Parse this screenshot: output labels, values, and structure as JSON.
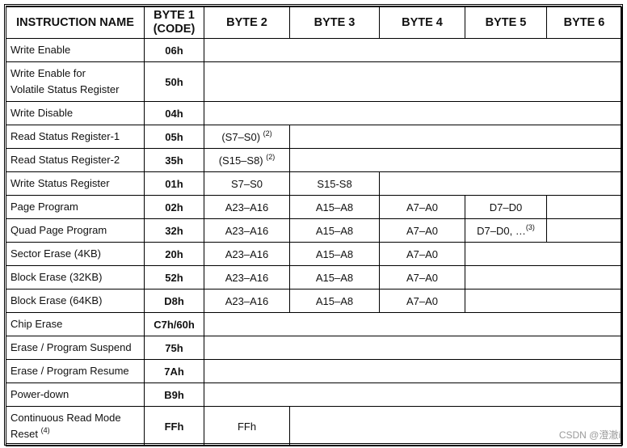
{
  "headers": [
    "INSTRUCTION NAME",
    "BYTE 1\n(CODE)",
    "BYTE 2",
    "BYTE 3",
    "BYTE 4",
    "BYTE 5",
    "BYTE 6"
  ],
  "rows": [
    {
      "name": "Write Enable",
      "code": "06h",
      "bytes": []
    },
    {
      "name": "Write Enable for\nVolatile Status Register",
      "code": "50h",
      "bytes": [],
      "tall": true
    },
    {
      "name": "Write Disable",
      "code": "04h",
      "bytes": []
    },
    {
      "name": "Read Status Register-1",
      "code": "05h",
      "bytes": [
        {
          "text": "(S7–S0) ",
          "sup": "(2)"
        }
      ]
    },
    {
      "name": "Read Status Register-2",
      "code": "35h",
      "bytes": [
        {
          "text": "(S15–S8) ",
          "sup": "(2)"
        }
      ]
    },
    {
      "name": "Write Status Register",
      "code": "01h",
      "bytes": [
        {
          "text": "S7–S0"
        },
        {
          "text": "S15-S8"
        }
      ]
    },
    {
      "name": "Page Program",
      "code": "02h",
      "bytes": [
        {
          "text": "A23–A16"
        },
        {
          "text": "A15–A8"
        },
        {
          "text": "A7–A0"
        },
        {
          "text": "D7–D0"
        },
        {
          "text": ""
        }
      ]
    },
    {
      "name": "Quad Page Program",
      "code": "32h",
      "bytes": [
        {
          "text": "A23–A16"
        },
        {
          "text": "A15–A8"
        },
        {
          "text": "A7–A0"
        },
        {
          "text": "D7–D0, …",
          "sup": "(3)"
        },
        {
          "text": ""
        }
      ]
    },
    {
      "name": "Sector Erase (4KB)",
      "code": "20h",
      "bytes": [
        {
          "text": "A23–A16"
        },
        {
          "text": "A15–A8"
        },
        {
          "text": "A7–A0"
        }
      ]
    },
    {
      "name": "Block Erase (32KB)",
      "code": "52h",
      "bytes": [
        {
          "text": "A23–A16"
        },
        {
          "text": "A15–A8"
        },
        {
          "text": "A7–A0"
        }
      ]
    },
    {
      "name": "Block Erase (64KB)",
      "code": "D8h",
      "bytes": [
        {
          "text": "A23–A16"
        },
        {
          "text": "A15–A8"
        },
        {
          "text": "A7–A0"
        }
      ]
    },
    {
      "name": "Chip Erase",
      "code": "C7h/60h",
      "bytes": []
    },
    {
      "name": "Erase / Program Suspend",
      "code": "75h",
      "bytes": []
    },
    {
      "name": "Erase / Program Resume",
      "code": "7Ah",
      "bytes": []
    },
    {
      "name": "Power-down",
      "code": "B9h",
      "bytes": []
    },
    {
      "name": "Continuous Read Mode\nReset ",
      "name_sup": "(4)",
      "code": "FFh",
      "bytes": [
        {
          "text": "FFh"
        }
      ],
      "tall": true
    }
  ],
  "watermark": "CSDN @澄澈i"
}
